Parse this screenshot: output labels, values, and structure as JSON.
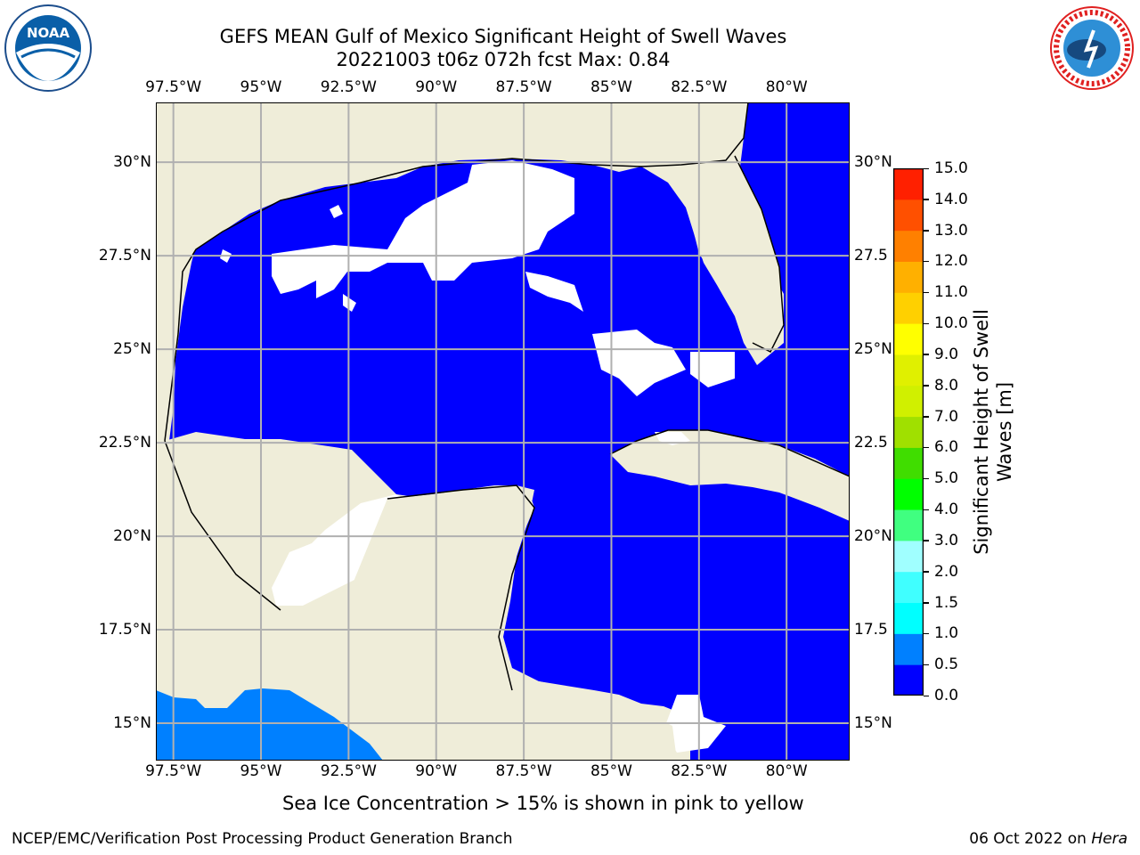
{
  "header": {
    "title_line1": "GEFS MEAN Gulf of Mexico Significant Height of Swell Waves",
    "title_line2": "20221003 t06z 072h fcst   Max: 0.84"
  },
  "logos": {
    "left": {
      "name": "noaa-logo",
      "text": "NOAA"
    },
    "right": {
      "name": "nws-logo",
      "text": "NATIONAL WEATHER SERVICE"
    }
  },
  "map": {
    "lon_ticks": [
      "97.5°W",
      "95°W",
      "92.5°W",
      "90°W",
      "87.5°W",
      "85°W",
      "82.5°W",
      "80°W"
    ],
    "lon_values": [
      -97.5,
      -95,
      -92.5,
      -90,
      -87.5,
      -85,
      -82.5,
      -80
    ],
    "lat_ticks_left": [
      "30°N",
      "27.5°N",
      "25°N",
      "22.5°N",
      "20°N",
      "17.5°N",
      "15°N"
    ],
    "lat_ticks_right": [
      "30°N",
      "27.5",
      "25°N",
      "22.5",
      "20°N",
      "17.5",
      "15°N"
    ],
    "lat_values": [
      30,
      27.5,
      25,
      22.5,
      20,
      17.5,
      15
    ],
    "extent": {
      "lon_min": -98,
      "lon_max": -78.2,
      "lat_min": 14,
      "lat_max": 31.6
    },
    "colors": {
      "land": "#efedd9",
      "sea": "#0000ff",
      "low_swell": "#0080ff",
      "grid": "#b0b0b0"
    }
  },
  "colorbar": {
    "label_line1": "Significant Height of Swell",
    "label_line2": "Waves [m]",
    "ticks": [
      "15.0",
      "14.0",
      "13.0",
      "12.0",
      "11.0",
      "10.0",
      "9.0",
      "8.0",
      "7.0",
      "6.0",
      "5.0",
      "4.0",
      "3.0",
      "2.0",
      "1.5",
      "1.0",
      "0.5",
      "0.0"
    ],
    "levels": [
      0,
      0.5,
      1,
      1.5,
      2,
      3,
      4,
      5,
      6,
      7,
      8,
      9,
      10,
      11,
      12,
      13,
      14,
      15
    ],
    "colors": [
      "#0000ff",
      "#0080ff",
      "#00ffff",
      "#40ffff",
      "#a0ffff",
      "#40ff80",
      "#00ff00",
      "#40dd00",
      "#a0e000",
      "#d0f000",
      "#e0f000",
      "#ffff00",
      "#ffd000",
      "#ffb000",
      "#ff8000",
      "#ff5000",
      "#ff2000"
    ]
  },
  "footer": {
    "note": "Sea Ice Concentration > 15% is shown in pink to yellow",
    "credit": "NCEP/EMC/Verification Post Processing Product Generation Branch",
    "date": "06 Oct 2022",
    "on": " on ",
    "host": "Hera"
  }
}
